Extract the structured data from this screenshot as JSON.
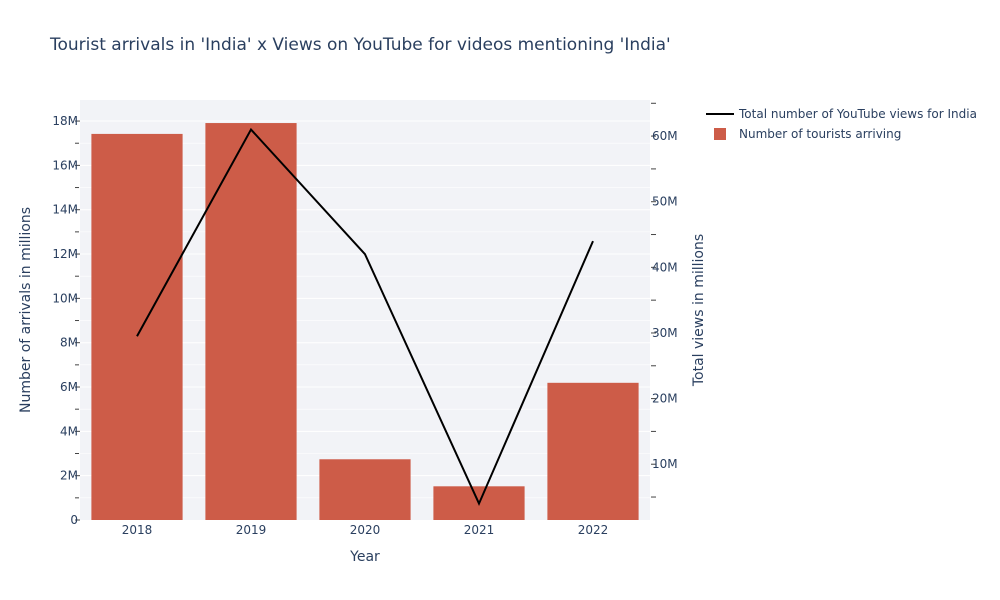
{
  "chart_data": {
    "type": "bar",
    "title": "Tourist arrivals in 'India' x Views on YouTube for videos mentioning 'India'",
    "xlabel": "Year",
    "ylabel": "Number of arrivals in millions",
    "y2label": "Total views in millions",
    "categories": [
      "2018",
      "2019",
      "2020",
      "2021",
      "2022"
    ],
    "series": [
      {
        "name": "Number of tourists arriving",
        "type": "bar",
        "axis": "left",
        "color": "#cd5c48",
        "values": [
          17.42,
          17.91,
          2.74,
          1.52,
          6.19
        ]
      },
      {
        "name": "Total number of YouTube views for India",
        "type": "line",
        "axis": "right",
        "color": "#000000",
        "values": [
          29.5,
          61.0,
          42.0,
          4.0,
          44.0
        ]
      }
    ],
    "ylim": [
      0,
      18.95
    ],
    "y2lim": [
      1.5,
      65.5
    ],
    "yticks": [
      {
        "value": 0,
        "label": "0"
      },
      {
        "value": 2,
        "label": "2M"
      },
      {
        "value": 4,
        "label": "4M"
      },
      {
        "value": 6,
        "label": "6M"
      },
      {
        "value": 8,
        "label": "8M"
      },
      {
        "value": 10,
        "label": "10M"
      },
      {
        "value": 12,
        "label": "12M"
      },
      {
        "value": 14,
        "label": "14M"
      },
      {
        "value": 16,
        "label": "16M"
      },
      {
        "value": 18,
        "label": "18M"
      }
    ],
    "y2ticks": [
      {
        "value": 10,
        "label": "10M"
      },
      {
        "value": 20,
        "label": "20M"
      },
      {
        "value": 30,
        "label": "30M"
      },
      {
        "value": 40,
        "label": "40M"
      },
      {
        "value": 50,
        "label": "50M"
      },
      {
        "value": 60,
        "label": "60M"
      }
    ],
    "legend_position": "top-right",
    "grid": true,
    "background_color": "#f2f3f7"
  }
}
